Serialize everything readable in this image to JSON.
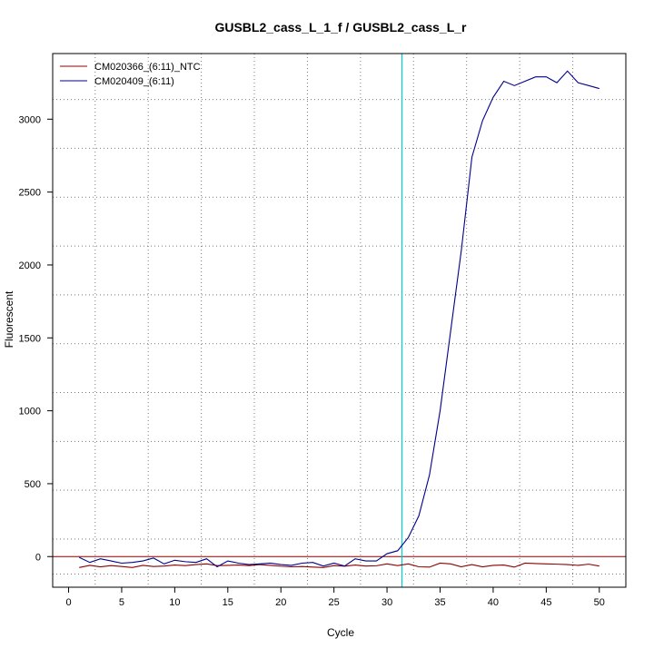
{
  "chart_data": {
    "type": "line",
    "title": "GUSBL2_cass_L_1_f / GUSBL2_cass_L_r",
    "xlabel": "Cycle",
    "ylabel": "Fluorescent",
    "xlim": [
      -1.5,
      52.5
    ],
    "ylim": [
      -210,
      3450
    ],
    "x_ticks": [
      0,
      5,
      10,
      15,
      20,
      25,
      30,
      35,
      40,
      45,
      50
    ],
    "y_ticks": [
      0,
      500,
      1000,
      1500,
      2000,
      2500,
      3000
    ],
    "x_grid": [
      2.5,
      7.5,
      12.5,
      17.5,
      22.5,
      27.5,
      32.5,
      37.5,
      42.5,
      47.5
    ],
    "y_grid": [
      -120,
      120,
      455,
      790,
      1125,
      1460,
      1795,
      2130,
      2465,
      2800,
      3135
    ],
    "grid": true,
    "legend_position": "top-left",
    "threshold": {
      "y": 0,
      "color": "#8b0000"
    },
    "cycle_marker": {
      "x": 31.4,
      "color": "#00d0d0"
    },
    "series": [
      {
        "name": "CM020366_(6:11)_NTC",
        "color": "#8b0000",
        "x": [
          1,
          2,
          3,
          4,
          5,
          6,
          7,
          8,
          9,
          10,
          11,
          12,
          13,
          14,
          15,
          16,
          17,
          18,
          19,
          20,
          21,
          22,
          23,
          24,
          25,
          26,
          27,
          28,
          29,
          30,
          31,
          32,
          33,
          34,
          35,
          36,
          37,
          38,
          39,
          40,
          41,
          42,
          43,
          44,
          45,
          46,
          47,
          48,
          49,
          50
        ],
        "values": [
          -75,
          -60,
          -70,
          -62,
          -68,
          -75,
          -60,
          -68,
          -65,
          -58,
          -62,
          -55,
          -50,
          -62,
          -60,
          -58,
          -62,
          -55,
          -60,
          -66,
          -70,
          -68,
          -72,
          -75,
          -62,
          -66,
          -58,
          -65,
          -63,
          -50,
          -62,
          -50,
          -70,
          -72,
          -45,
          -50,
          -70,
          -55,
          -70,
          -60,
          -58,
          -72,
          -45,
          -48,
          -50,
          -52,
          -55,
          -60,
          -52,
          -65
        ]
      },
      {
        "name": "CM020409_(6:11)",
        "color": "#00008b",
        "x": [
          1,
          2,
          3,
          4,
          5,
          6,
          7,
          8,
          9,
          10,
          11,
          12,
          13,
          14,
          15,
          16,
          17,
          18,
          19,
          20,
          21,
          22,
          23,
          24,
          25,
          26,
          27,
          28,
          29,
          30,
          31,
          32,
          33,
          34,
          35,
          36,
          37,
          38,
          39,
          40,
          41,
          42,
          43,
          44,
          45,
          46,
          47,
          48,
          49,
          50
        ],
        "values": [
          -5,
          -40,
          -15,
          -30,
          -45,
          -40,
          -30,
          -10,
          -50,
          -25,
          -35,
          -40,
          -15,
          -70,
          -30,
          -45,
          -55,
          -50,
          -45,
          -55,
          -60,
          -45,
          -40,
          -65,
          -45,
          -65,
          -15,
          -30,
          -30,
          20,
          40,
          130,
          280,
          560,
          1000,
          1550,
          2100,
          2740,
          2990,
          3150,
          3260,
          3230,
          3260,
          3290,
          3290,
          3250,
          3330,
          3250,
          3230,
          3210
        ]
      }
    ]
  }
}
